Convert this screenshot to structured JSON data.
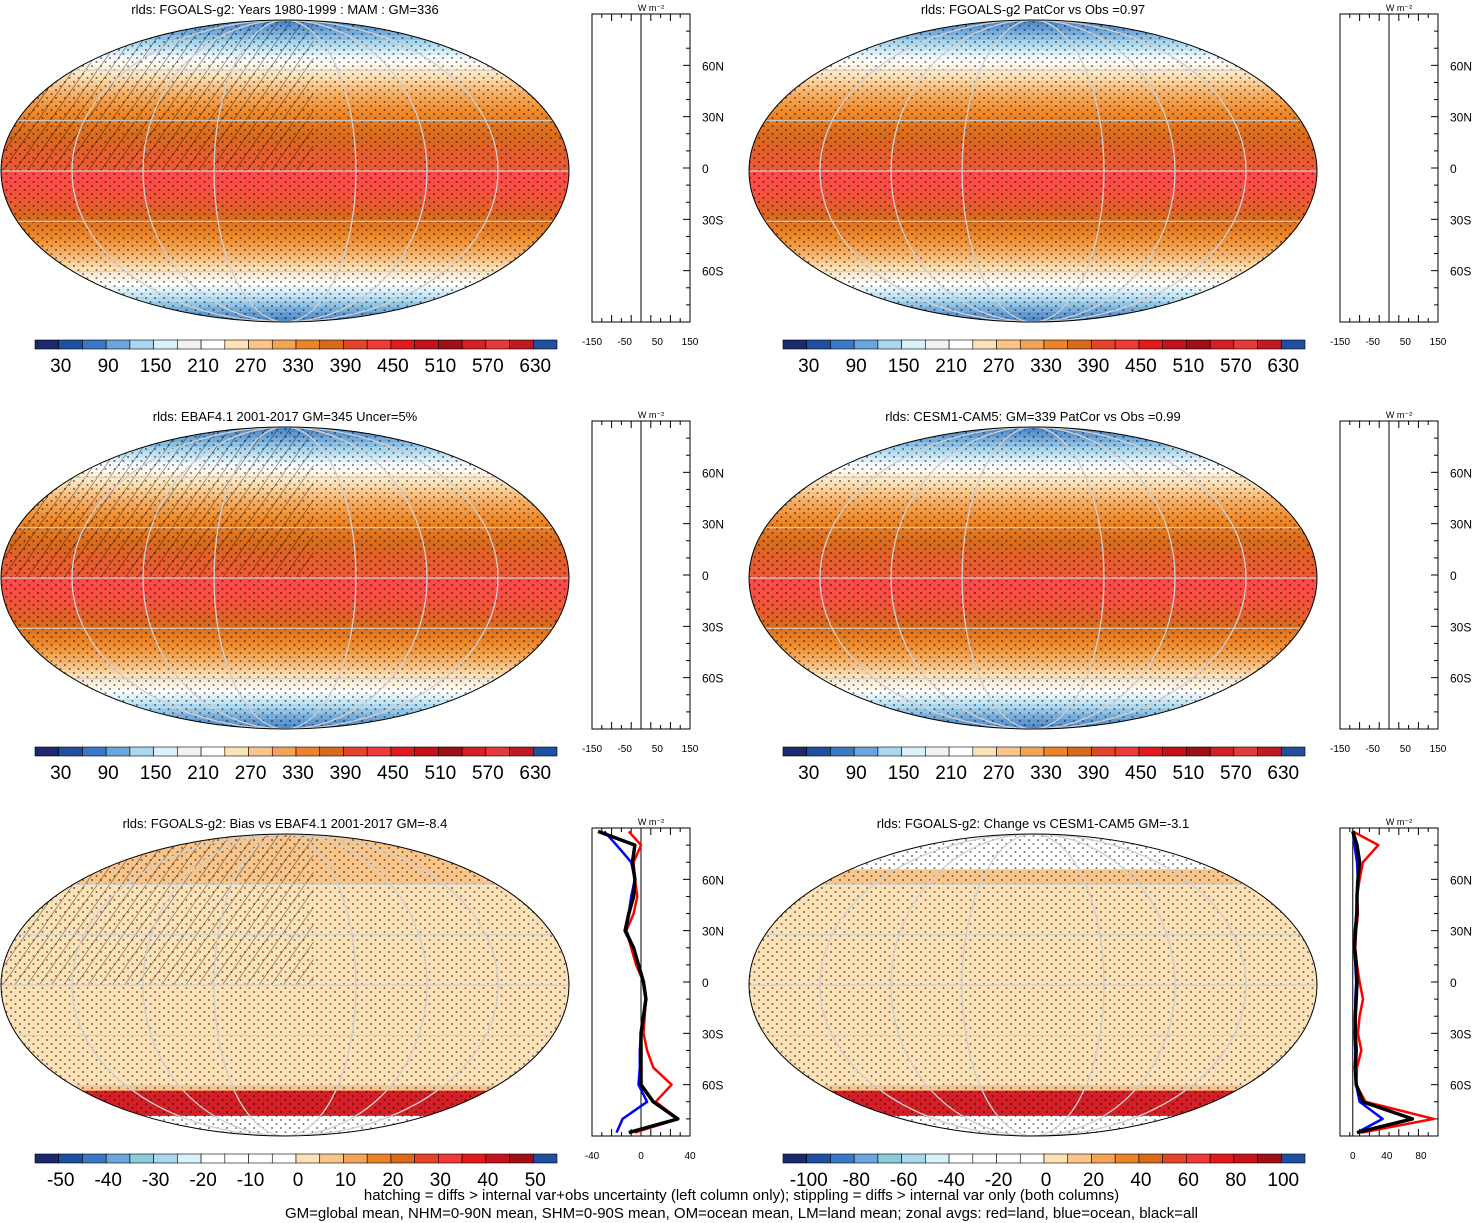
{
  "colors": {
    "abs_scale": [
      "#1a2a6c",
      "#1f4fa0",
      "#3a78c6",
      "#6aa6dd",
      "#a9d7ee",
      "#d9f1f8",
      "#f2f2f2",
      "#ffffff",
      "#fde2b8",
      "#f9c58a",
      "#f2a459",
      "#eb832b",
      "#d86a1c",
      "#e2452c",
      "#f03a3a",
      "#e11b1b",
      "#c4141b",
      "#9e0f16",
      "#d41f26",
      "#e43b3a",
      "#c01a22",
      "#1f4fa0"
    ],
    "abs_ramp": [
      "#4a86c9",
      "#a9d7ee",
      "#ffffff",
      "#fde2b8",
      "#f6b26b",
      "#ef8a2a",
      "#d86a1c",
      "#ff4a4a"
    ],
    "land_line": "#000000",
    "grid": "#cfcfcf",
    "zonal_land": "#ff0000",
    "zonal_ocean": "#0000ff",
    "zonal_all": "#000000"
  },
  "panels": [
    {
      "title": "rlds: FGOALS-g2: Years 1980-1999 : MAM : GM=336",
      "hatching": true,
      "stippling": true,
      "colorbar_ticks": [
        "30",
        "90",
        "150",
        "210",
        "270",
        "330",
        "390",
        "450",
        "510",
        "570",
        "630"
      ],
      "zonal_ticks": [
        "-150",
        "-50",
        "50",
        "150"
      ],
      "zonal_unit": "W m⁻²",
      "lat_ticks": [
        "60N",
        "30N",
        "0",
        "30S",
        "60S"
      ],
      "zonal_profile": {
        "xlim": [
          -150,
          150
        ],
        "lat": [],
        "land": [],
        "ocean": [],
        "all": []
      }
    },
    {
      "title": "rlds: FGOALS-g2 PatCor vs Obs =0.97",
      "hatching": false,
      "stippling": true,
      "colorbar_ticks": [
        "30",
        "90",
        "150",
        "210",
        "270",
        "330",
        "390",
        "450",
        "510",
        "570",
        "630"
      ],
      "zonal_ticks": [
        "-150",
        "-50",
        "50",
        "150"
      ],
      "zonal_unit": "W m⁻²",
      "lat_ticks": [
        "60N",
        "30N",
        "0",
        "30S",
        "60S"
      ],
      "zonal_profile": {
        "xlim": [
          -150,
          150
        ],
        "lat": [],
        "land": [],
        "ocean": [],
        "all": []
      }
    },
    {
      "title": "rlds: EBAF4.1 2001-2017 GM=345 Uncer=5%",
      "hatching": true,
      "stippling": true,
      "colorbar_ticks": [
        "30",
        "90",
        "150",
        "210",
        "270",
        "330",
        "390",
        "450",
        "510",
        "570",
        "630"
      ],
      "zonal_ticks": [
        "-150",
        "-50",
        "50",
        "150"
      ],
      "zonal_unit": "W m⁻²",
      "lat_ticks": [
        "60N",
        "30N",
        "0",
        "30S",
        "60S"
      ],
      "zonal_profile": {
        "xlim": [
          -150,
          150
        ],
        "lat": [],
        "land": [],
        "ocean": [],
        "all": []
      }
    },
    {
      "title": "rlds: CESM1-CAM5: GM=339 PatCor vs Obs =0.99",
      "hatching": false,
      "stippling": true,
      "colorbar_ticks": [
        "30",
        "90",
        "150",
        "210",
        "270",
        "330",
        "390",
        "450",
        "510",
        "570",
        "630"
      ],
      "zonal_ticks": [
        "-150",
        "-50",
        "50",
        "150"
      ],
      "zonal_unit": "W m⁻²",
      "lat_ticks": [
        "60N",
        "30N",
        "0",
        "30S",
        "60S"
      ],
      "zonal_profile": {
        "xlim": [
          -150,
          150
        ],
        "lat": [],
        "land": [],
        "ocean": [],
        "all": []
      }
    },
    {
      "title": "rlds: FGOALS-g2: Bias vs EBAF4.1 2001-2017 GM=-8.4",
      "hatching": true,
      "stippling": true,
      "colorbar_ticks": [
        "-50",
        "-40",
        "-30",
        "-20",
        "-10",
        "0",
        "10",
        "20",
        "30",
        "40",
        "50"
      ],
      "zonal_ticks": [
        "-40",
        "0",
        "40"
      ],
      "zonal_unit": "W m⁻²",
      "lat_ticks": [
        "60N",
        "30N",
        "0",
        "30S",
        "60S"
      ],
      "zonal_profile": {
        "xlim": [
          -40,
          40
        ],
        "lat": [
          88,
          80,
          70,
          60,
          50,
          40,
          30,
          20,
          10,
          0,
          -10,
          -20,
          -30,
          -40,
          -50,
          -60,
          -70,
          -80,
          -88
        ],
        "land": [
          -10,
          0,
          -6,
          -5,
          -3,
          -6,
          -12,
          -8,
          -4,
          2,
          4,
          3,
          2,
          5,
          10,
          25,
          12,
          30,
          -5
        ],
        "ocean": [
          -30,
          -20,
          -8,
          -5,
          -8,
          -10,
          -12,
          -6,
          -2,
          2,
          4,
          2,
          0,
          -1,
          -1,
          -2,
          5,
          -15,
          -20
        ],
        "all": [
          -35,
          -5,
          -7,
          -5,
          -6,
          -10,
          -13,
          -6,
          -2,
          2,
          4,
          2,
          0,
          0,
          0,
          0,
          10,
          30,
          -10
        ]
      }
    },
    {
      "title": "rlds: FGOALS-g2: Change vs CESM1-CAM5 GM=-3.1",
      "hatching": false,
      "stippling": true,
      "colorbar_ticks": [
        "-100",
        "-80",
        "-60",
        "-40",
        "-20",
        "0",
        "20",
        "40",
        "60",
        "80",
        "100"
      ],
      "zonal_ticks": [
        "0",
        "40",
        "80"
      ],
      "zonal_unit": "W m⁻²",
      "lat_ticks": [
        "60N",
        "30N",
        "0",
        "30S",
        "60S"
      ],
      "zonal_profile": {
        "xlim": [
          -15,
          100
        ],
        "lat": [
          88,
          80,
          70,
          60,
          50,
          40,
          30,
          20,
          10,
          0,
          -10,
          -20,
          -30,
          -40,
          -50,
          -60,
          -70,
          -80,
          -88
        ],
        "land": [
          0,
          30,
          12,
          8,
          5,
          6,
          4,
          3,
          5,
          8,
          12,
          8,
          6,
          10,
          5,
          4,
          15,
          95,
          10
        ],
        "ocean": [
          0,
          2,
          5,
          6,
          5,
          4,
          3,
          2,
          3,
          4,
          3,
          3,
          2,
          3,
          3,
          4,
          8,
          35,
          5
        ],
        "all": [
          0,
          5,
          8,
          6,
          5,
          5,
          3,
          2,
          4,
          5,
          4,
          3,
          3,
          4,
          3,
          4,
          12,
          70,
          5
        ]
      }
    }
  ],
  "footer": {
    "line1": "hatching = diffs > internal var+obs uncertainty (left column only); stippling = diffs > internal var only (both columns)",
    "line2": "GM=global mean, NHM=0-90N mean, SHM=0-90S mean, OM=ocean mean, LM=land mean; zonal avgs: red=land, blue=ocean, black=all"
  }
}
